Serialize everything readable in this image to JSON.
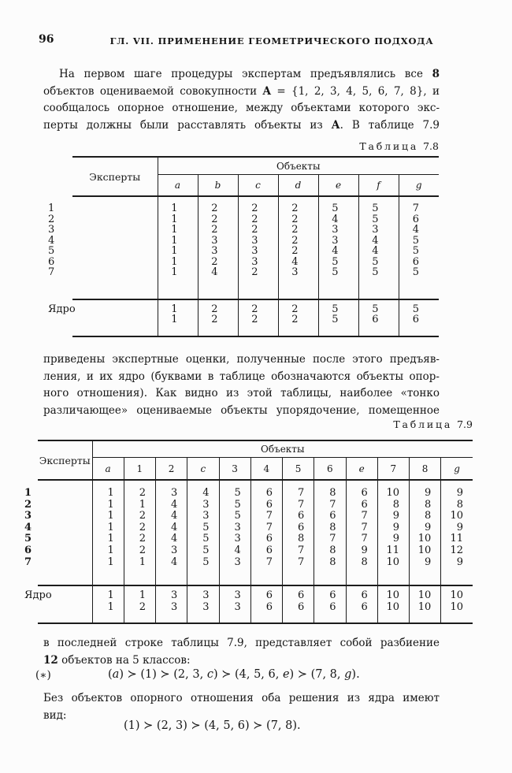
{
  "page": {
    "number": "96",
    "running_head": "ГЛ. VII. ПРИМЕНЕНИЕ ГЕОМЕТРИЧЕСКОГО ПОДХОДА"
  },
  "paragraphs": {
    "p1": [
      [
        {
          "t": "На первом шаге процедуры экспертам предъявлялись все "
        },
        {
          "t": "8",
          "b": true
        }
      ],
      [
        {
          "t": "объектов оцениваемой совокупности "
        },
        {
          "t": "A",
          "b": true
        },
        {
          "t": " = {1, 2, 3, 4, 5, 6, 7, 8}, и"
        }
      ],
      [
        {
          "t": "сообщалось опорное отношение, между объектами которого экс-"
        }
      ],
      [
        {
          "t": "перты должны были расставлять объекты из "
        },
        {
          "t": "А",
          "b": true
        },
        {
          "t": ". В таблице 7.9"
        }
      ]
    ],
    "p2": [
      [
        {
          "t": "приведены экспертные оценки, полученные после этого предъяв-"
        }
      ],
      [
        {
          "t": "ления, и их ядро (буквами в таблице обозначаются объекты опор-"
        }
      ],
      [
        {
          "t": "ного отношения). Как видно из этой таблицы, наиболее «тонко"
        }
      ],
      [
        {
          "t": "различающее» оцениваемые объекты упорядочение, помещенное"
        }
      ]
    ],
    "p3": [
      [
        {
          "t": "в последней строке таблицы 7.9, представляет собой разбиение"
        }
      ],
      [
        {
          "t": "12",
          "b": true
        },
        {
          "t": " объектов на 5 классов:"
        }
      ]
    ],
    "p4": [
      [
        {
          "t": "Без объектов опорного отношения оба решения из ядра имеют"
        }
      ],
      [
        {
          "t": "вид:"
        }
      ]
    ]
  },
  "formulas": {
    "star_marker": "(∗)",
    "f1": [
      {
        "t": "("
      },
      {
        "t": "a",
        "i": true
      },
      {
        "t": ") ≻ (1) ≻ (2, 3, "
      },
      {
        "t": "c",
        "i": true
      },
      {
        "t": ") ≻ (4, 5, 6, "
      },
      {
        "t": "e",
        "i": true
      },
      {
        "t": ") ≻ (7, 8, "
      },
      {
        "t": "g",
        "i": true
      },
      {
        "t": ")."
      }
    ],
    "f2": [
      {
        "t": "(1) ≻ (2, 3) ≻ (4, 5, 6) ≻ (7, 8)."
      }
    ]
  },
  "table78": {
    "caption_word": "Таблица",
    "caption_number": "7.8",
    "experts_header": "Эксперты",
    "objects_header": "Объекты",
    "columns": [
      "a",
      "b",
      "c",
      "d",
      "e",
      "f",
      "g"
    ],
    "rows": [
      {
        "label": "1",
        "values": [
          "1",
          "2",
          "2",
          "2",
          "5",
          "5",
          "7"
        ]
      },
      {
        "label": "2",
        "values": [
          "1",
          "2",
          "2",
          "2",
          "4",
          "5",
          "6"
        ]
      },
      {
        "label": "3",
        "values": [
          "1",
          "2",
          "2",
          "2",
          "3",
          "3",
          "4"
        ]
      },
      {
        "label": "4",
        "values": [
          "1",
          "3",
          "3",
          "2",
          "3",
          "4",
          "5"
        ]
      },
      {
        "label": "5",
        "values": [
          "1",
          "3",
          "3",
          "2",
          "4",
          "4",
          "5"
        ]
      },
      {
        "label": "6",
        "values": [
          "1",
          "2",
          "3",
          "4",
          "5",
          "5",
          "6"
        ]
      },
      {
        "label": "7",
        "values": [
          "1",
          "4",
          "2",
          "3",
          "5",
          "5",
          "5"
        ]
      }
    ],
    "kernel_rows": [
      {
        "label": "Ядро",
        "values": [
          "1",
          "2",
          "2",
          "2",
          "5",
          "5",
          "5"
        ]
      },
      {
        "label": "",
        "values": [
          "1",
          "2",
          "2",
          "2",
          "5",
          "6",
          "6"
        ]
      }
    ]
  },
  "table79": {
    "caption_word": "Таблица",
    "caption_number": "7.9",
    "experts_header": "Эксперты",
    "objects_header": "Объекты",
    "columns": [
      "a",
      "1",
      "2",
      "c",
      "3",
      "4",
      "5",
      "6",
      "e",
      "7",
      "8",
      "g"
    ],
    "rows": [
      {
        "label": "1",
        "values": [
          "1",
          "2",
          "3",
          "4",
          "5",
          "6",
          "7",
          "8",
          "6",
          "10",
          "9",
          "9"
        ]
      },
      {
        "label": "2",
        "values": [
          "1",
          "1",
          "4",
          "3",
          "5",
          "6",
          "7",
          "7",
          "6",
          "8",
          "8",
          "8"
        ]
      },
      {
        "label": "3",
        "values": [
          "1",
          "2",
          "4",
          "3",
          "5",
          "7",
          "6",
          "6",
          "7",
          "9",
          "8",
          "10"
        ]
      },
      {
        "label": "4",
        "values": [
          "1",
          "2",
          "4",
          "5",
          "3",
          "7",
          "6",
          "8",
          "7",
          "9",
          "9",
          "9"
        ]
      },
      {
        "label": "5",
        "values": [
          "1",
          "2",
          "4",
          "5",
          "3",
          "6",
          "8",
          "7",
          "7",
          "9",
          "10",
          "11"
        ]
      },
      {
        "label": "6",
        "values": [
          "1",
          "2",
          "3",
          "5",
          "4",
          "6",
          "7",
          "8",
          "9",
          "11",
          "10",
          "12"
        ]
      },
      {
        "label": "7",
        "values": [
          "1",
          "1",
          "4",
          "5",
          "3",
          "7",
          "7",
          "8",
          "8",
          "10",
          "9",
          "9"
        ]
      }
    ],
    "kernel_rows": [
      {
        "label": "Ядро",
        "values": [
          "1",
          "1",
          "3",
          "3",
          "3",
          "6",
          "6",
          "6",
          "6",
          "10",
          "10",
          "10"
        ]
      },
      {
        "label": "",
        "values": [
          "1",
          "2",
          "3",
          "3",
          "3",
          "6",
          "6",
          "6",
          "6",
          "10",
          "10",
          "10"
        ]
      }
    ]
  }
}
